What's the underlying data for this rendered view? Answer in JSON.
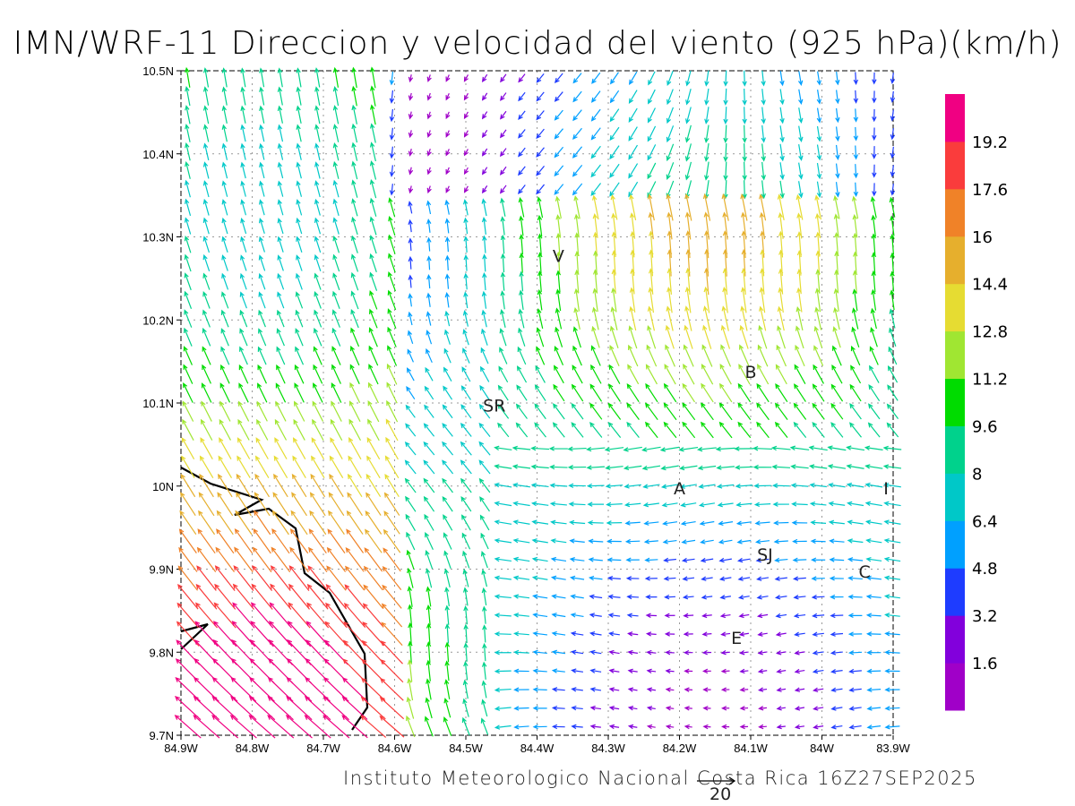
{
  "title": "IMN/WRF-11 Direccion y velocidad del viento (925 hPa)(km/h)",
  "footer": "Instituto Meteorologico Nacional Costa Rica  16Z27SEP2025",
  "reference_vector": {
    "label": "20",
    "value": 20
  },
  "axes": {
    "lon_ticks": [
      "84.9W",
      "84.8W",
      "84.7W",
      "84.6W",
      "84.5W",
      "84.4W",
      "84.3W",
      "84.2W",
      "84.1W",
      "84W",
      "83.9W"
    ],
    "lat_ticks": [
      "9.7N",
      "9.8N",
      "9.9N",
      "10N",
      "10.1N",
      "10.2N",
      "10.3N",
      "10.4N",
      "10.5N"
    ],
    "lon_range": [
      -84.9,
      -83.9
    ],
    "lat_range": [
      9.7,
      10.5
    ]
  },
  "colorbar": {
    "labels": [
      "1.6",
      "3.2",
      "4.8",
      "6.4",
      "8",
      "9.6",
      "11.2",
      "12.8",
      "14.4",
      "16",
      "17.6",
      "19.2"
    ],
    "colors": [
      "#a000c8",
      "#8200dc",
      "#1e3cff",
      "#00a0ff",
      "#00c8c8",
      "#00d28c",
      "#00dc00",
      "#a0e632",
      "#e6dc32",
      "#e6af2d",
      "#f08228",
      "#fa3c3c",
      "#f00082"
    ]
  },
  "cities": [
    {
      "label": "V",
      "lon": -84.37,
      "lat": 10.27
    },
    {
      "label": "SR",
      "lon": -84.46,
      "lat": 10.09
    },
    {
      "label": "B",
      "lon": -84.1,
      "lat": 10.13
    },
    {
      "label": "A",
      "lon": -84.2,
      "lat": 9.99
    },
    {
      "label": "I",
      "lon": -83.91,
      "lat": 9.99
    },
    {
      "label": "SJ",
      "lon": -84.08,
      "lat": 9.91
    },
    {
      "label": "C",
      "lon": -83.94,
      "lat": 9.89
    },
    {
      "label": "E",
      "lon": -84.12,
      "lat": 9.81
    }
  ]
}
